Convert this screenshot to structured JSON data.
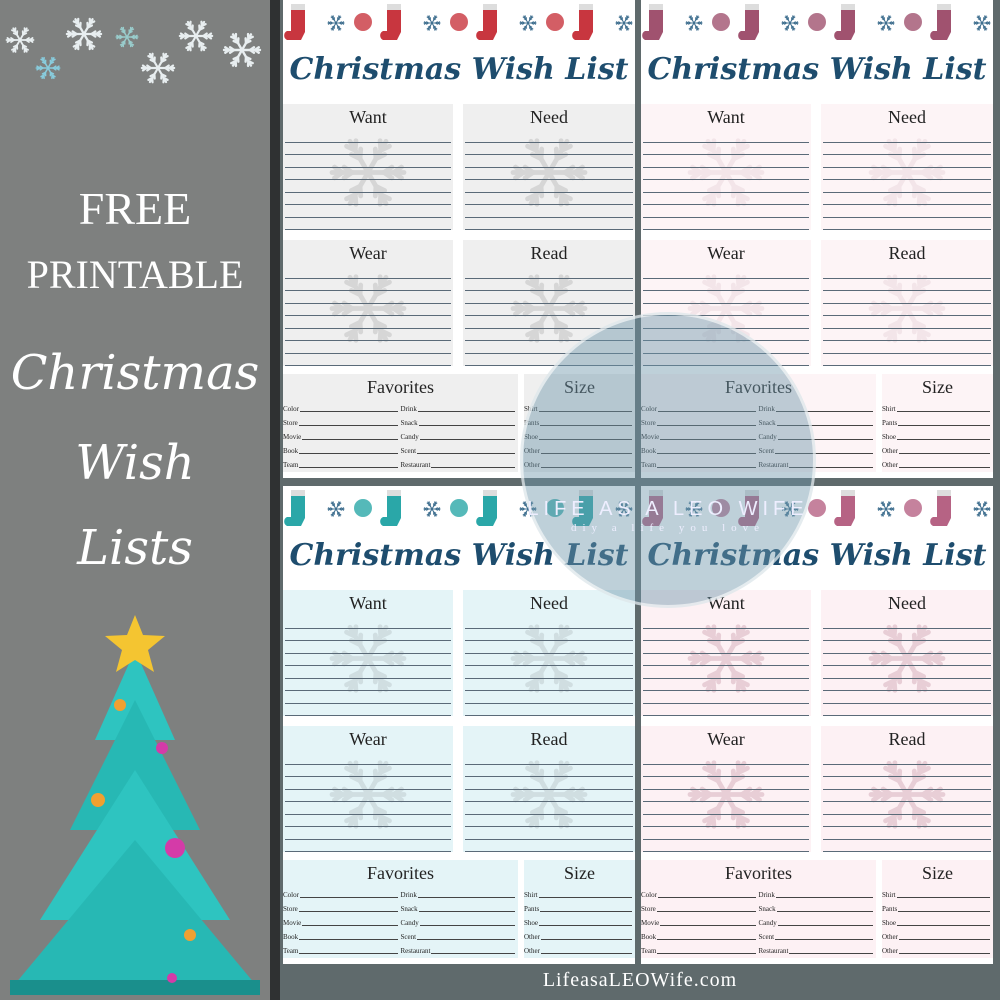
{
  "left": {
    "line1": "FREE",
    "line2": "PRINTABLE",
    "line3": "Christmas",
    "line4": "Wish",
    "line5": "Lists"
  },
  "cards": [
    {
      "title": "Christmas Wish List",
      "theme": "red",
      "box_color": "#efefef",
      "icon_color": "#c8363f",
      "snow_color": "#b8b8b8"
    },
    {
      "title": "Christmas Wish List",
      "theme": "mauve",
      "box_color": "#fdf4f6",
      "icon_color": "#a0526f",
      "snow_color": "#e8d4da"
    },
    {
      "title": "Christmas Wish List",
      "theme": "teal",
      "box_color": "#e4f4f7",
      "icon_color": "#2aa7a8",
      "snow_color": "#b8c4c8"
    },
    {
      "title": "Christmas Wish List",
      "theme": "pink",
      "box_color": "#fdf1f4",
      "icon_color": "#b66384",
      "snow_color": "#cfa4b2"
    }
  ],
  "sections": {
    "want": "Want",
    "need": "Need",
    "wear": "Wear",
    "read": "Read",
    "favorites": "Favorites",
    "size": "Size"
  },
  "favorites_left": [
    "Color",
    "Store",
    "Movie",
    "Book",
    "Team"
  ],
  "favorites_mid": [
    "Drink",
    "Snack",
    "Candy",
    "Scent",
    "Restaurant"
  ],
  "size_items": [
    "Shirt",
    "Pants",
    "Shoe",
    "Other",
    "Other"
  ],
  "watermark": {
    "name": "LIFE AS A LEO WIFE",
    "tagline": "diy a life you love"
  },
  "footer": {
    "site": "LifeasaLEOWife.com"
  }
}
